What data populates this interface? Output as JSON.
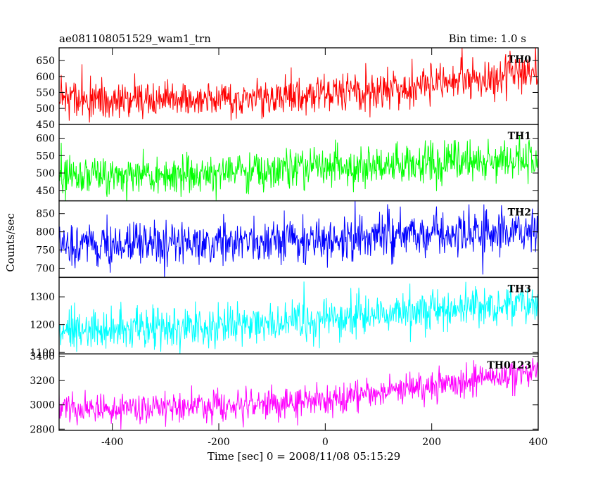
{
  "header": {
    "title": "ae081108051529_wam1_trn",
    "bin_time": "Bin time: 1.0 s"
  },
  "chart_data": {
    "type": "line",
    "title": "ae081108051529_wam1_trn",
    "subtitle": "Bin time: 1.0 s",
    "xlabel": "Time [sec] 0 = 2008/11/08 05:15:29",
    "ylabel": "Counts/sec",
    "xlim": [
      -500,
      400
    ],
    "x_ticks": [
      -400,
      -200,
      0,
      200,
      400
    ],
    "bin_time_s": 1.0,
    "grid": false,
    "panels": [
      {
        "name": "TH0",
        "color": "#ff0000",
        "ylim": [
          450,
          690
        ],
        "y_ticks": [
          450,
          500,
          550,
          600,
          650
        ],
        "series_x": [
          -500,
          -400,
          -300,
          -200,
          -100,
          0,
          100,
          200,
          300,
          400
        ],
        "series_y": [
          530,
          525,
          528,
          530,
          535,
          545,
          555,
          575,
          595,
          610
        ],
        "noise_sd": 30
      },
      {
        "name": "TH1",
        "color": "#00ff00",
        "ylim": [
          420,
          640
        ],
        "y_ticks": [
          450,
          500,
          550,
          600
        ],
        "series_x": [
          -500,
          -400,
          -300,
          -200,
          -100,
          0,
          100,
          200,
          300,
          400
        ],
        "series_y": [
          495,
          495,
          498,
          502,
          505,
          515,
          522,
          530,
          538,
          545
        ],
        "noise_sd": 28
      },
      {
        "name": "TH2",
        "color": "#0000ff",
        "ylim": [
          675,
          885
        ],
        "y_ticks": [
          700,
          750,
          800,
          850
        ],
        "series_x": [
          -500,
          -400,
          -300,
          -200,
          -100,
          0,
          100,
          200,
          300,
          400
        ],
        "series_y": [
          770,
          770,
          770,
          772,
          775,
          780,
          790,
          795,
          800,
          805
        ],
        "noise_sd": 30
      },
      {
        "name": "TH3",
        "color": "#00ffff",
        "ylim": [
          1095,
          1370
        ],
        "y_ticks": [
          1100,
          1200,
          1300
        ],
        "series_x": [
          -500,
          -400,
          -300,
          -200,
          -100,
          0,
          100,
          200,
          300,
          400
        ],
        "series_y": [
          1170,
          1180,
          1190,
          1200,
          1210,
          1225,
          1240,
          1255,
          1270,
          1285
        ],
        "noise_sd": 38
      },
      {
        "name": "TH0123",
        "color": "#ff00ff",
        "ylim": [
          2790,
          3420
        ],
        "y_ticks": [
          2800,
          3000,
          3200,
          3400
        ],
        "series_x": [
          -500,
          -400,
          -300,
          -200,
          -100,
          0,
          100,
          200,
          300,
          400
        ],
        "series_y": [
          2960,
          2965,
          2975,
          2990,
          3010,
          3050,
          3110,
          3170,
          3220,
          3270
        ],
        "noise_sd": 65
      }
    ]
  }
}
